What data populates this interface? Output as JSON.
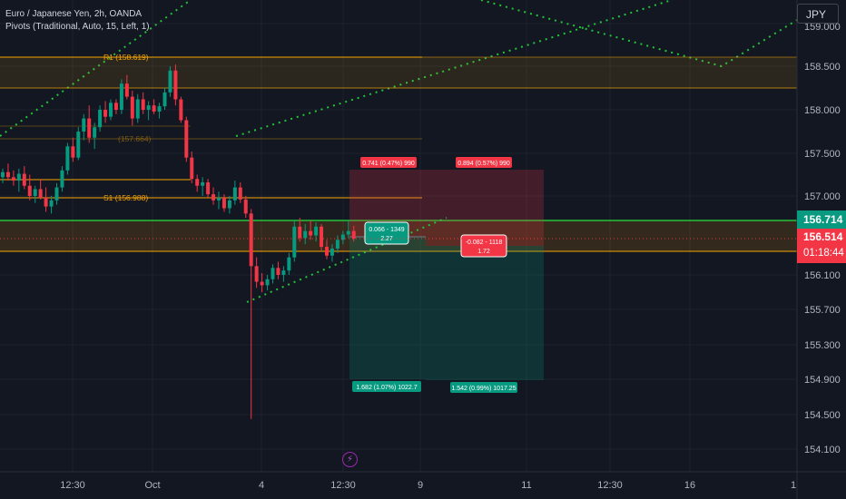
{
  "header": {
    "symbol_line": "Euro / Japanese Yen, 2h, OANDA",
    "indicator_line": "Pivots (Traditional, Auto, 15, Left, 1)"
  },
  "currency_button": "JPY",
  "price_axis": {
    "ticks": [
      "158.500",
      "158.000",
      "157.500",
      "157.000",
      "156.100",
      "155.700",
      "155.300",
      "154.900",
      "154.500",
      "154.100"
    ],
    "top_partial_tick": "159.000",
    "last_green": "156.714",
    "last_red": "156.514",
    "countdown": "01:18:44"
  },
  "time_axis": {
    "ticks": [
      "12:30",
      "Oct",
      "4",
      "12:30",
      "9",
      "11",
      "12:30",
      "16",
      "1"
    ]
  },
  "pivots": {
    "r1": "R1 (158.619)",
    "p_partial": "(157.664)",
    "s1": "S1 (156.988)"
  },
  "positions": [
    {
      "stop_label": "0.741 (0.47%) 990",
      "mid_label_1": "0.066 - 1349",
      "mid_label_2": "2.27",
      "target_label": "1.682 (1.07%) 1022.7"
    },
    {
      "stop_label": "0.894 (0.57%) 990",
      "mid_label_1": "-0.082 - 1118",
      "mid_label_2": "1.72",
      "target_label": "1.542 (0.99%) 1017.25"
    }
  ],
  "colors": {
    "background": "#131722",
    "up": "#089981",
    "down": "#f23645",
    "pivot": "#f7a600",
    "trend_dots": "#22c43a",
    "text": "#d1d4dc"
  },
  "chart_data": {
    "type": "candlestick",
    "symbol": "EUR/JPY",
    "timeframe": "2h",
    "ohlc": [
      [
        157.22,
        157.32,
        157.15,
        157.28
      ],
      [
        157.28,
        157.38,
        157.18,
        157.22
      ],
      [
        157.22,
        157.3,
        157.12,
        157.18
      ],
      [
        157.18,
        157.32,
        157.05,
        157.26
      ],
      [
        157.26,
        157.35,
        157.08,
        157.12
      ],
      [
        157.12,
        157.25,
        156.95,
        157.0
      ],
      [
        157.0,
        157.12,
        156.92,
        157.08
      ],
      [
        157.08,
        157.2,
        156.96,
        156.98
      ],
      [
        156.98,
        157.1,
        156.82,
        156.88
      ],
      [
        156.88,
        157.0,
        156.8,
        156.95
      ],
      [
        156.95,
        157.15,
        156.9,
        157.1
      ],
      [
        157.1,
        157.35,
        157.05,
        157.3
      ],
      [
        157.3,
        157.62,
        157.25,
        157.58
      ],
      [
        157.58,
        157.68,
        157.4,
        157.45
      ],
      [
        157.45,
        157.8,
        157.42,
        157.75
      ],
      [
        157.75,
        157.95,
        157.65,
        157.9
      ],
      [
        157.9,
        158.05,
        157.62,
        157.68
      ],
      [
        157.68,
        157.85,
        157.55,
        157.8
      ],
      [
        157.8,
        158.05,
        157.75,
        158.0
      ],
      [
        158.0,
        158.1,
        157.85,
        157.92
      ],
      [
        157.92,
        158.12,
        157.88,
        158.08
      ],
      [
        158.08,
        158.12,
        157.95,
        158.0
      ],
      [
        158.0,
        158.35,
        157.95,
        158.3
      ],
      [
        158.3,
        158.4,
        158.12,
        158.15
      ],
      [
        158.15,
        158.22,
        157.82,
        157.9
      ],
      [
        157.9,
        158.18,
        157.85,
        158.12
      ],
      [
        158.12,
        158.2,
        157.95,
        158.0
      ],
      [
        158.0,
        158.1,
        157.88,
        158.05
      ],
      [
        158.05,
        158.12,
        157.95,
        157.98
      ],
      [
        157.98,
        158.08,
        157.9,
        158.04
      ],
      [
        158.04,
        158.25,
        158.0,
        158.2
      ],
      [
        158.2,
        158.5,
        158.15,
        158.45
      ],
      [
        158.45,
        158.52,
        158.05,
        158.12
      ],
      [
        158.12,
        158.15,
        157.85,
        157.88
      ],
      [
        157.88,
        157.92,
        157.4,
        157.45
      ],
      [
        157.45,
        157.52,
        157.15,
        157.2
      ],
      [
        157.2,
        157.25,
        157.05,
        157.12
      ],
      [
        157.12,
        157.22,
        157.0,
        157.16
      ],
      [
        157.16,
        157.2,
        156.98,
        157.02
      ],
      [
        157.02,
        157.1,
        156.9,
        156.95
      ],
      [
        156.95,
        157.05,
        156.85,
        156.98
      ],
      [
        156.98,
        157.02,
        156.82,
        156.86
      ],
      [
        156.86,
        157.0,
        156.8,
        156.95
      ],
      [
        156.95,
        157.18,
        156.9,
        157.1
      ],
      [
        157.1,
        157.16,
        156.92,
        156.96
      ],
      [
        156.96,
        157.0,
        156.75,
        156.8
      ],
      [
        156.8,
        156.85,
        154.45,
        156.2
      ],
      [
        156.2,
        156.3,
        155.95,
        156.02
      ],
      [
        156.02,
        156.12,
        155.9,
        155.98
      ],
      [
        155.98,
        156.1,
        155.92,
        156.05
      ],
      [
        156.05,
        156.22,
        156.0,
        156.18
      ],
      [
        156.18,
        156.25,
        156.05,
        156.1
      ],
      [
        156.1,
        156.2,
        156.02,
        156.15
      ],
      [
        156.15,
        156.35,
        156.1,
        156.3
      ],
      [
        156.3,
        156.72,
        156.25,
        156.65
      ],
      [
        156.65,
        156.75,
        156.48,
        156.52
      ],
      [
        156.52,
        156.68,
        156.45,
        156.6
      ],
      [
        156.6,
        156.72,
        156.5,
        156.55
      ],
      [
        156.55,
        156.7,
        156.48,
        156.65
      ],
      [
        156.65,
        156.68,
        156.38,
        156.42
      ],
      [
        156.42,
        156.5,
        156.28,
        156.32
      ],
      [
        156.32,
        156.45,
        156.25,
        156.4
      ],
      [
        156.4,
        156.55,
        156.35,
        156.5
      ],
      [
        156.5,
        156.6,
        156.45,
        156.56
      ],
      [
        156.56,
        156.72,
        156.52,
        156.6
      ],
      [
        156.6,
        156.66,
        156.48,
        156.514
      ]
    ],
    "pivot_levels": {
      "R1": 158.619,
      "P": 157.664,
      "S1": 156.988
    },
    "last_price": 156.514,
    "ylim": [
      154.0,
      159.1
    ]
  }
}
